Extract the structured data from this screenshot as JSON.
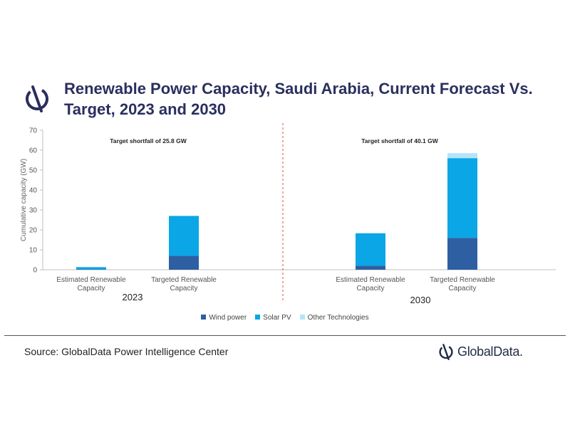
{
  "title": "Renewable Power Capacity, Saudi Arabia, Current Forecast Vs. Target, 2023 and 2030",
  "source": "Source: GlobalData Power Intelligence Center",
  "brand": "GlobalData.",
  "chart_data": {
    "type": "bar",
    "stacked": true,
    "ylabel": "Cumulative capacity (GW)",
    "ylim": [
      0,
      70
    ],
    "yticks": [
      0,
      10,
      20,
      30,
      40,
      50,
      60,
      70
    ],
    "grid": false,
    "legend_position": "bottom",
    "groups": [
      {
        "label": "2023",
        "annotation": "Target shortfall of 25.8 GW",
        "categories": [
          "Estimated Renewable Capacity",
          "Targeted Renewable Capacity"
        ]
      },
      {
        "label": "2030",
        "annotation": "Target shortfall of 40.1 GW",
        "categories": [
          "Estimated Renewable Capacity",
          "Targeted Renewable Capacity"
        ]
      }
    ],
    "series": [
      {
        "name": "Wind power",
        "color": "#2e5fa3",
        "values": [
          0.2,
          7,
          2,
          16
        ]
      },
      {
        "name": "Solar PV",
        "color": "#0aa6e6",
        "values": [
          1.1,
          20,
          16.3,
          40
        ]
      },
      {
        "name": "Other Technologies",
        "color": "#b5e4f7",
        "values": [
          0,
          0,
          0,
          2.5
        ]
      }
    ]
  }
}
